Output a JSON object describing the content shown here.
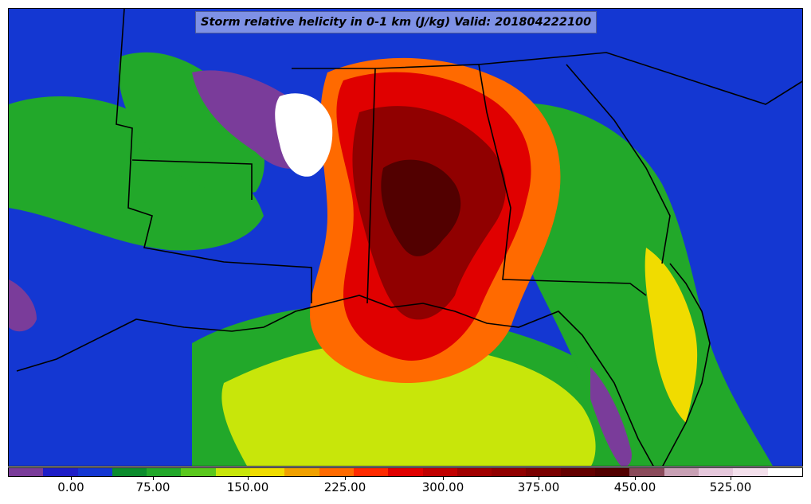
{
  "title": "Storm relative helicity in 0-1 km (J/kg) Valid: 201804222100",
  "colorbar": {
    "colors": [
      "#7a3c9a",
      "#1e1ec8",
      "#1437d2",
      "#0b8c2d",
      "#22a82a",
      "#5ac81e",
      "#c8e60a",
      "#f0dc00",
      "#f0a000",
      "#ff6a00",
      "#ff2a00",
      "#e00000",
      "#c00000",
      "#a00000",
      "#900000",
      "#7a0000",
      "#640000",
      "#520000",
      "#8a4a5a",
      "#c8a0b4",
      "#e6c8dc",
      "#f4e0ec",
      "#ffffff"
    ],
    "ticks": [
      "0.00",
      "75.00",
      "150.00",
      "225.00",
      "300.00",
      "375.00",
      "450.00",
      "525.00"
    ]
  },
  "fields": {
    "base": "#1437d2",
    "green": "#22a82a",
    "lightgreen": "#5ac81e",
    "yellow": "#d8e60a",
    "orange": "#ff6a00",
    "red": "#e00000",
    "darkred": "#800000",
    "maroon": "#520000",
    "purple": "#7a3c9a",
    "white": "#ffffff"
  }
}
